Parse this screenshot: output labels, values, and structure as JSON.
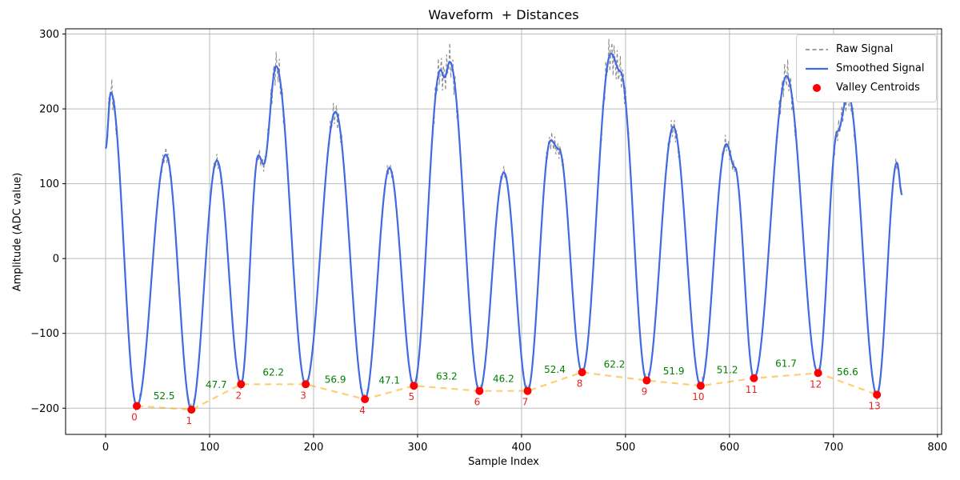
{
  "chart_data": {
    "type": "line",
    "title": "Waveform  + Distances",
    "xlabel": "Sample Index",
    "ylabel": "Amplitude (ADC value)",
    "xlim": [
      -38.5,
      804
    ],
    "ylim": [
      -235,
      307
    ],
    "x_ticks": [
      0,
      100,
      200,
      300,
      400,
      500,
      600,
      700,
      800
    ],
    "y_ticks": [
      -200,
      -100,
      0,
      100,
      200,
      300
    ],
    "grid": true,
    "colors": {
      "grid": "#bbbbbb",
      "axes": "#000000",
      "raw": "#7f7f7f",
      "smoothed": "#4169e1",
      "valley_marker": "#ff0000",
      "valley_index_label": "#ee2222",
      "distance_label": "#008000",
      "connector": "rgba(255,165,0,0.55)"
    },
    "legend": {
      "position": "upper right",
      "entries": [
        {
          "label": "Raw Signal",
          "marker": "dashed-line",
          "color": "#7f7f7f"
        },
        {
          "label": "Smoothed Signal",
          "marker": "solid-line",
          "color": "#4169e1"
        },
        {
          "label": "Valley Centroids",
          "marker": "dot",
          "color": "#ff0000"
        }
      ]
    },
    "series": [
      {
        "name": "Raw Signal",
        "style": "dashed",
        "color": "#7f7f7f",
        "derivation": "smoothed signal plus high-frequency jitter, larger near peaks and valleys",
        "noise_model": {
          "base": 2.5,
          "peak_gain": 0.11,
          "valley_gain": 0.07,
          "freq": 2.3,
          "phase": 0.8,
          "slow_amp": 1.5,
          "slow_freq": 0.33
        }
      },
      {
        "name": "Smoothed Signal",
        "style": "solid",
        "color": "#4169e1",
        "sample_range": [
          0,
          766
        ],
        "anchor_points": [
          [
            0,
            147
          ],
          [
            5,
            222
          ],
          [
            30,
            -197
          ],
          [
            58,
            139
          ],
          [
            82.5,
            -202
          ],
          [
            107,
            131
          ],
          [
            130.2,
            -168
          ],
          [
            147,
            138
          ],
          [
            152,
            126
          ],
          [
            164,
            257
          ],
          [
            192.4,
            -168
          ],
          [
            221,
            196
          ],
          [
            249.3,
            -188
          ],
          [
            273,
            121
          ],
          [
            296.4,
            -170
          ],
          [
            322,
            252
          ],
          [
            326,
            242
          ],
          [
            331,
            263
          ],
          [
            359.6,
            -177
          ],
          [
            383,
            115
          ],
          [
            405.8,
            -177
          ],
          [
            428,
            158
          ],
          [
            436,
            146
          ],
          [
            458.2,
            -152
          ],
          [
            486,
            274
          ],
          [
            495,
            250
          ],
          [
            520.4,
            -163
          ],
          [
            546,
            176
          ],
          [
            572.3,
            -170
          ],
          [
            597,
            153
          ],
          [
            605,
            122
          ],
          [
            623.5,
            -160
          ],
          [
            655,
            244
          ],
          [
            685.2,
            -153
          ],
          [
            704,
            170
          ],
          [
            714,
            219
          ],
          [
            741.8,
            -182
          ],
          [
            761,
            128
          ],
          [
            766,
            85
          ]
        ]
      },
      {
        "name": "Valley Centroids",
        "style": "scatter",
        "color": "#ff0000",
        "x": [
          30.0,
          82.5,
          130.2,
          192.4,
          249.3,
          296.4,
          359.6,
          405.8,
          458.2,
          520.4,
          572.3,
          623.5,
          685.2,
          741.8
        ],
        "y": [
          -197,
          -202,
          -168,
          -168,
          -188,
          -170,
          -177,
          -177,
          -152,
          -163,
          -170,
          -160,
          -153,
          -182
        ],
        "point_labels": [
          "0",
          "1",
          "2",
          "3",
          "4",
          "5",
          "6",
          "7",
          "8",
          "9",
          "10",
          "11",
          "12",
          "13"
        ]
      }
    ],
    "distance_annotations": {
      "between_valleys": true,
      "values": [
        52.5,
        47.7,
        62.2,
        56.9,
        47.1,
        63.2,
        46.2,
        52.4,
        62.2,
        51.9,
        51.2,
        61.7,
        56.6
      ]
    }
  }
}
